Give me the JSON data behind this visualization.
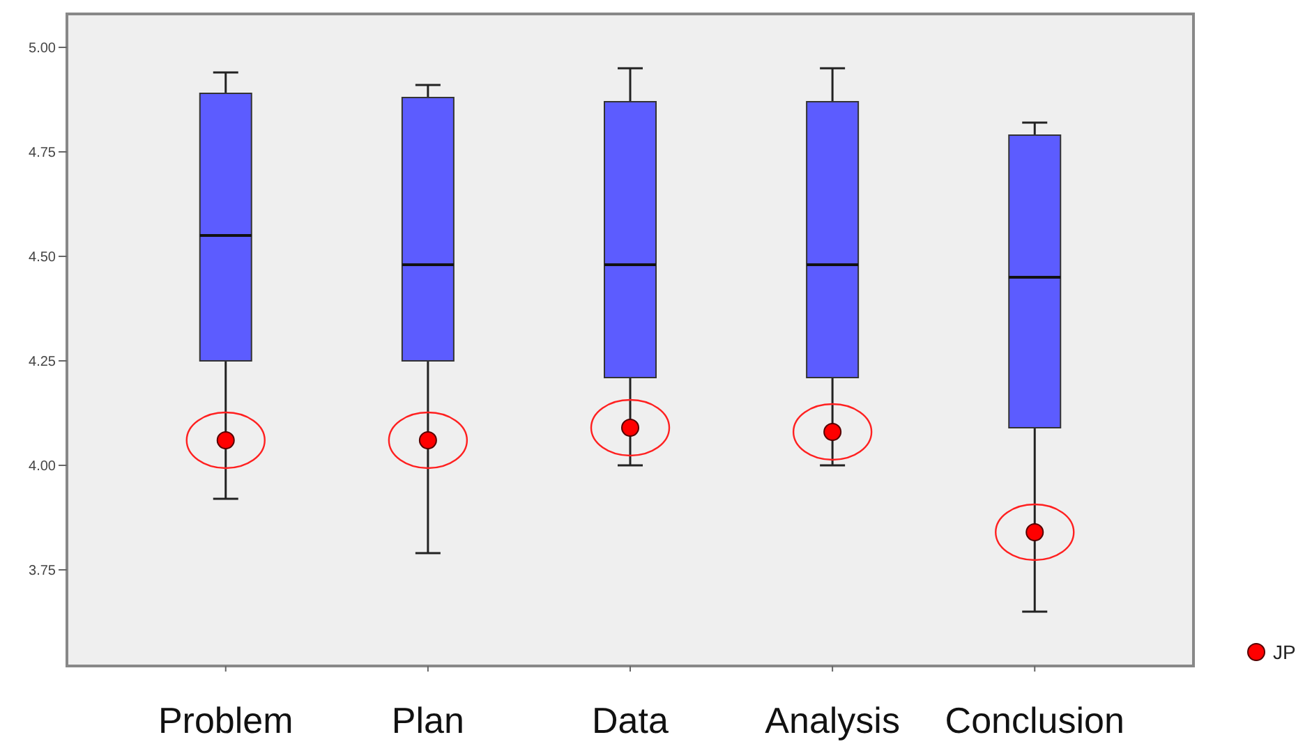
{
  "chart_data": {
    "type": "box",
    "categories": [
      "Problem",
      "Plan",
      "Data",
      "Analysis",
      "Conclusion"
    ],
    "series": [
      {
        "color": "#5c5cff",
        "boxes": [
          {
            "low": 3.92,
            "q1": 4.25,
            "median": 4.55,
            "q3": 4.89,
            "high": 4.94
          },
          {
            "low": 3.79,
            "q1": 4.25,
            "median": 4.48,
            "q3": 4.88,
            "high": 4.91
          },
          {
            "low": 4.0,
            "q1": 4.21,
            "median": 4.48,
            "q3": 4.87,
            "high": 4.95
          },
          {
            "low": 4.0,
            "q1": 4.21,
            "median": 4.48,
            "q3": 4.87,
            "high": 4.95
          },
          {
            "low": 3.65,
            "q1": 4.09,
            "median": 4.45,
            "q3": 4.79,
            "high": 4.82
          }
        ]
      },
      {
        "type": "scatter",
        "name": "JP",
        "color": "#ff0000",
        "x": [
          "Problem",
          "Plan",
          "Data",
          "Analysis",
          "Conclusion"
        ],
        "values": [
          4.06,
          4.06,
          4.09,
          4.08,
          3.84
        ]
      }
    ],
    "marker": "circle",
    "ylim": [
      3.52,
      5.08
    ],
    "yticks": [
      {
        "value": 3.75,
        "label": "3.75"
      },
      {
        "value": 4,
        "label": "4.00"
      },
      {
        "value": 4.25,
        "label": "4.25"
      },
      {
        "value": 4.5,
        "label": "4.50"
      },
      {
        "value": 4.75,
        "label": "4.75"
      },
      {
        "value": 5,
        "label": "5.00"
      }
    ],
    "legend": "bottom right"
  }
}
